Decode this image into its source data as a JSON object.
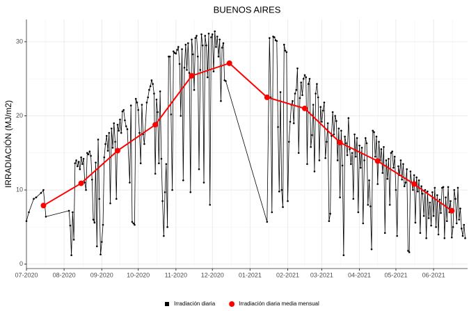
{
  "chart_data": {
    "type": "line",
    "title": "BUENOS AIRES",
    "y_label": "IRRADIACIÓN (MJ/m2)",
    "xlim": [
      0,
      363
    ],
    "xticks": [
      {
        "value": 0,
        "label": "07-2020"
      },
      {
        "value": 31,
        "label": "08-2020"
      },
      {
        "value": 62,
        "label": "09-2020"
      },
      {
        "value": 92,
        "label": "10-2020"
      },
      {
        "value": 123,
        "label": "11-2020"
      },
      {
        "value": 153,
        "label": "12-2020"
      },
      {
        "value": 184,
        "label": "01-2021"
      },
      {
        "value": 215,
        "label": "02-2021"
      },
      {
        "value": 243,
        "label": "03-2021"
      },
      {
        "value": 274,
        "label": "04-2021"
      },
      {
        "value": 304,
        "label": "05-2021"
      },
      {
        "value": 335,
        "label": "06-2021"
      }
    ],
    "ylim": [
      -0.6,
      33
    ],
    "yticks": [
      0,
      10,
      20,
      30
    ],
    "grid": true,
    "minor_grid": true,
    "legend_position": "bottom",
    "series": [
      {
        "name": "Irradiación diaria",
        "color": "#000000",
        "marker": "square",
        "x": [
          0,
          2,
          6,
          8,
          12,
          14,
          16,
          35,
          36,
          37,
          38,
          39,
          40,
          41,
          42,
          43,
          44,
          45,
          46,
          47,
          48,
          49,
          50,
          51,
          52,
          53,
          54,
          55,
          56,
          57,
          58,
          59,
          60,
          61,
          62,
          63,
          64,
          65,
          66,
          67,
          68,
          69,
          70,
          71,
          72,
          73,
          74,
          75,
          76,
          77,
          78,
          79,
          80,
          81,
          82,
          83,
          85,
          86,
          87,
          88,
          89,
          90,
          91,
          92,
          93,
          94,
          95,
          96,
          97,
          99,
          100,
          101,
          102,
          103,
          104,
          105,
          106,
          107,
          108,
          109,
          110,
          111,
          112,
          113,
          114,
          115,
          116,
          117,
          118,
          119,
          120,
          121,
          122,
          123,
          124,
          125,
          126,
          127,
          128,
          129,
          130,
          131,
          132,
          133,
          134,
          135,
          136,
          137,
          138,
          139,
          140,
          141,
          142,
          143,
          144,
          145,
          146,
          147,
          148,
          149,
          150,
          151,
          152,
          153,
          154,
          155,
          156,
          157,
          158,
          159,
          160,
          161,
          162,
          163,
          164,
          198,
          200,
          201,
          202,
          203,
          204,
          205,
          206,
          207,
          208,
          209,
          210,
          211,
          212,
          213,
          214,
          215,
          216,
          217,
          218,
          219,
          220,
          221,
          222,
          223,
          224,
          225,
          226,
          227,
          228,
          229,
          230,
          231,
          232,
          233,
          234,
          235,
          236,
          237,
          238,
          239,
          240,
          241,
          242,
          243,
          244,
          245,
          246,
          247,
          248,
          249,
          250,
          251,
          252,
          253,
          254,
          255,
          256,
          257,
          258,
          259,
          260,
          261,
          262,
          263,
          264,
          265,
          266,
          267,
          268,
          269,
          270,
          271,
          272,
          273,
          274,
          275,
          276,
          277,
          278,
          279,
          280,
          281,
          282,
          283,
          284,
          285,
          286,
          287,
          288,
          289,
          290,
          291,
          292,
          293,
          294,
          295,
          296,
          297,
          298,
          299,
          300,
          301,
          302,
          303,
          304,
          305,
          306,
          307,
          308,
          309,
          310,
          311,
          312,
          313,
          314,
          315,
          316,
          317,
          318,
          319,
          320,
          321,
          322,
          323,
          324,
          325,
          326,
          327,
          328,
          329,
          330,
          331,
          332,
          333,
          334,
          335,
          336,
          337,
          338,
          339,
          340,
          341,
          342,
          343,
          344,
          345,
          346,
          347,
          348,
          349,
          350,
          351,
          352,
          353,
          354,
          355,
          356,
          357,
          358,
          359,
          360,
          361
        ],
        "values": [
          5.8,
          7.0,
          8.8,
          9.0,
          9.6,
          10.0,
          6.4,
          7.2,
          5.2,
          1.2,
          7.0,
          3.3,
          13.6,
          14.0,
          13.2,
          13.8,
          12.8,
          14.4,
          13.5,
          14.2,
          11.0,
          10.0,
          15.0,
          14.8,
          15.2,
          14.6,
          11.4,
          6.0,
          5.6,
          13.7,
          2.4,
          16.8,
          8.8,
          1.3,
          3.0,
          5.3,
          14.4,
          16.2,
          17.3,
          15.3,
          17.7,
          8.2,
          18.3,
          15.7,
          19.0,
          16.5,
          8.8,
          18.8,
          18.0,
          19.5,
          17.7,
          20.6,
          20.8,
          19.4,
          18.6,
          18.2,
          11.0,
          21.4,
          5.7,
          5.5,
          5.3,
          22.3,
          21.8,
          20.8,
          17.7,
          13.6,
          21.5,
          17.5,
          16.2,
          21.8,
          22.5,
          23.5,
          24.0,
          24.8,
          24.3,
          23.0,
          12.2,
          22.2,
          20.5,
          13.6,
          23.3,
          14.2,
          8.5,
          3.8,
          9.7,
          13.5,
          5.0,
          28.0,
          28.0,
          20.2,
          10.0,
          28.7,
          28.5,
          28.4,
          28.9,
          29.3,
          27.0,
          20.0,
          29.0,
          11.3,
          26.5,
          29.6,
          26.2,
          29.8,
          25.8,
          9.7,
          30.3,
          28.3,
          23.5,
          30.5,
          30.8,
          28.0,
          12.8,
          26.2,
          31.0,
          29.5,
          11.0,
          30.8,
          29.5,
          25.2,
          31.1,
          8.0,
          30.6,
          31.0,
          26.0,
          31.4,
          29.3,
          30.7,
          28.0,
          30.3,
          22.0,
          29.2,
          29.8,
          24.8,
          24.7,
          5.7,
          30.5,
          22.5,
          7.0,
          30.7,
          30.6,
          30.2,
          30.1,
          18.5,
          9.8,
          23.2,
          10.0,
          7.7,
          29.6,
          28.8,
          28.6,
          8.5,
          16.5,
          19.2,
          21.5,
          22.0,
          19.0,
          23.0,
          23.5,
          26.4,
          15.0,
          22.4,
          24.5,
          22.8,
          25.0,
          25.5,
          25.2,
          13.5,
          24.3,
          25.0,
          15.8,
          17.4,
          21.5,
          12.5,
          23.0,
          24.3,
          22.5,
          14.0,
          21.2,
          19.2,
          20.7,
          21.8,
          14.3,
          16.5,
          19.0,
          5.8,
          6.8,
          17.3,
          20.5,
          17.5,
          20.0,
          19.3,
          14.0,
          18.3,
          9.0,
          18.0,
          13.3,
          1.2,
          17.2,
          16.3,
          14.7,
          19.7,
          15.5,
          13.5,
          15.0,
          8.8,
          17.5,
          14.5,
          17.0,
          7.0,
          16.0,
          13.0,
          15.7,
          5.5,
          14.0,
          17.0,
          16.3,
          8.0,
          11.3,
          7.8,
          2.0,
          18.0,
          17.8,
          14.5,
          17.2,
          10.8,
          16.5,
          14.0,
          15.5,
          12.3,
          15.8,
          4.2,
          14.0,
          11.5,
          14.2,
          8.0,
          15.0,
          15.2,
          13.0,
          14.5,
          10.0,
          3.8,
          13.2,
          12.0,
          14.0,
          11.4,
          13.5,
          10.5,
          11.0,
          12.8,
          1.8,
          1.6,
          12.5,
          11.0,
          10.0,
          12.0,
          5.6,
          11.7,
          9.8,
          11.3,
          4.2,
          10.5,
          9.5,
          6.5,
          10.0,
          3.5,
          9.8,
          6.2,
          8.3,
          5.2,
          9.7,
          6.5,
          10.3,
          5.0,
          9.3,
          4.0,
          8.7,
          6.9,
          10.3,
          10.4,
          3.5,
          9.0,
          5.8,
          10.4,
          7.0,
          8.5,
          3.6,
          5.0,
          10.0,
          8.8,
          5.5,
          10.3,
          6.0,
          7.5,
          4.8,
          3.8,
          5.3,
          3.5
        ]
      },
      {
        "name": "Irradiación diaria media mensual",
        "color": "#ff0000",
        "marker": "circle",
        "x": [
          14,
          45,
          75,
          106,
          136,
          167,
          198,
          229,
          258,
          289,
          319,
          350
        ],
        "values": [
          7.9,
          10.9,
          15.3,
          18.8,
          25.4,
          27.1,
          22.5,
          21.0,
          16.4,
          13.9,
          10.8,
          7.2
        ]
      }
    ]
  }
}
